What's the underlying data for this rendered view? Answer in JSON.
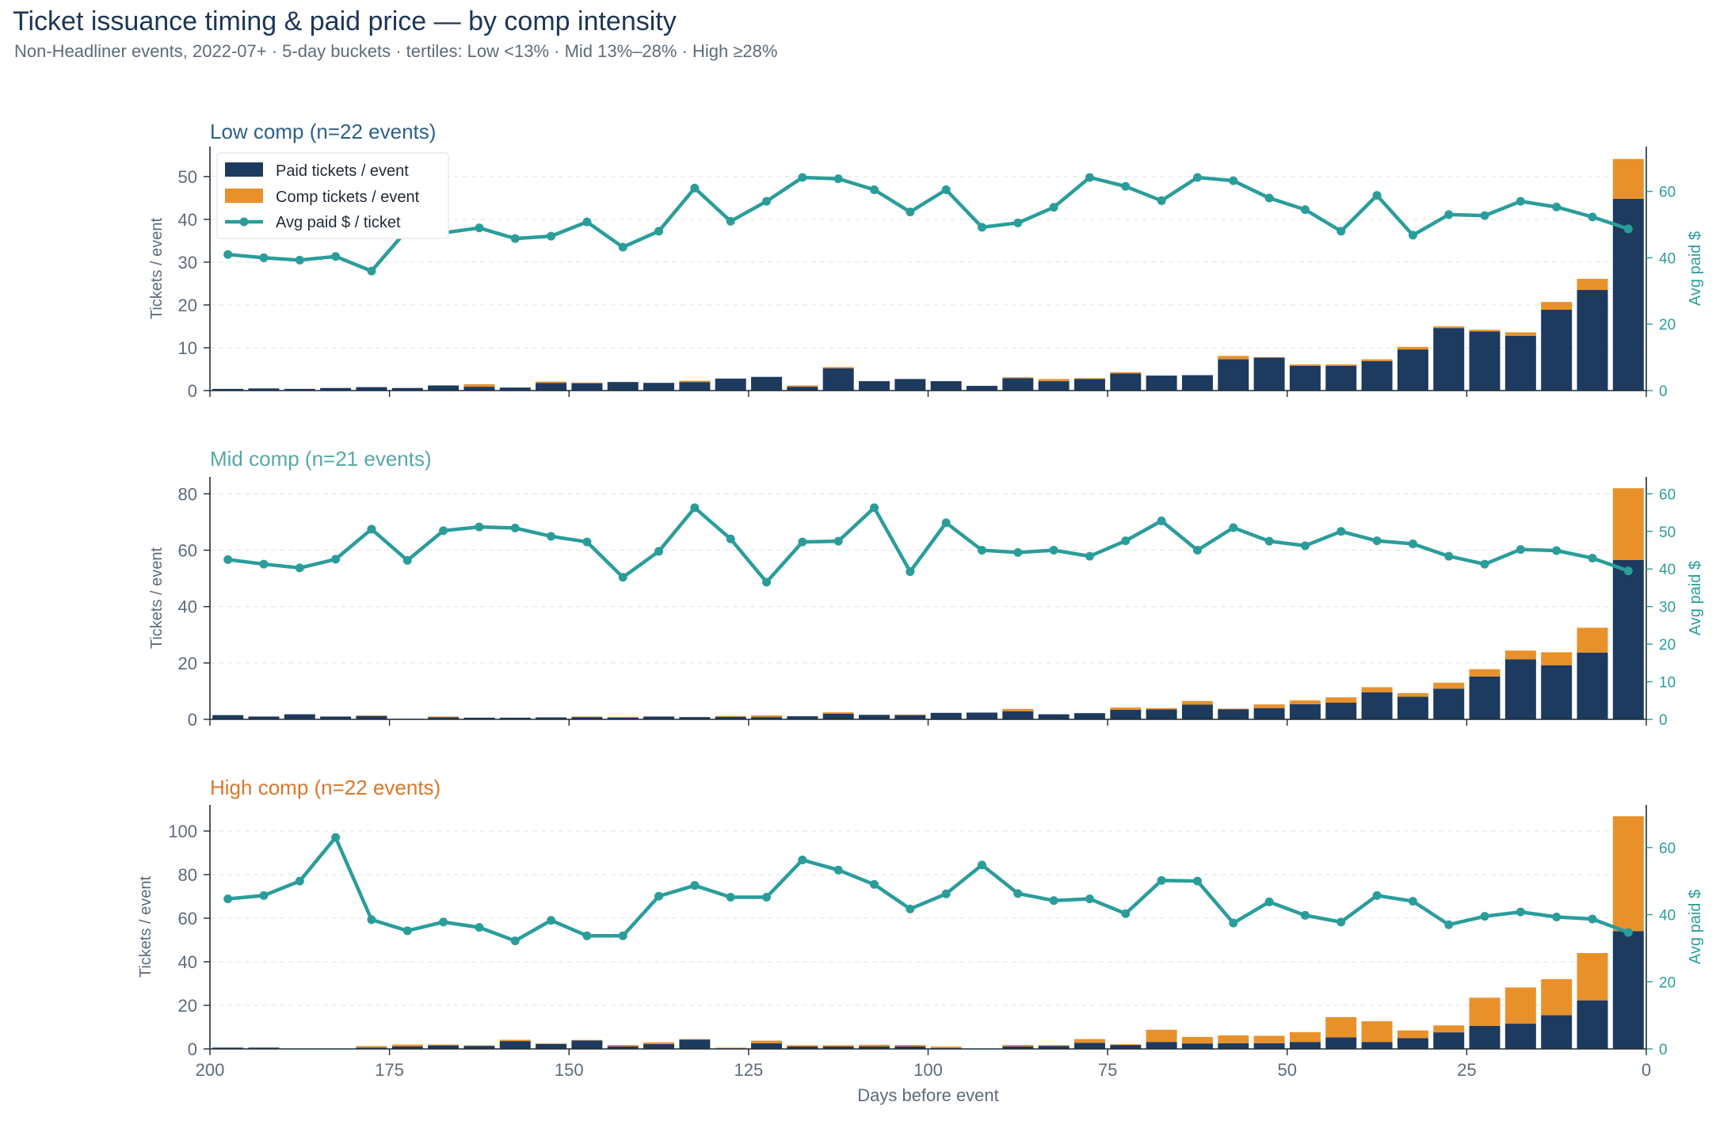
{
  "title": "Ticket issuance timing & paid price — by comp intensity",
  "subtitle": "Non-Headliner events, 2022-07+  ·  5-day buckets  ·  tertiles: Low <13%  ·  Mid 13%–28%  ·  High ≥28%",
  "colors": {
    "paid": "#1d3a5f",
    "comp": "#e8912b",
    "avg_price": "#2a9d9b",
    "title_low": "#2f5f8a",
    "title_mid": "#55a8a8",
    "title_high": "#d9772a",
    "axis_text": "#5d6b7a"
  },
  "legend": {
    "paid": "Paid tickets / event",
    "comp": "Comp tickets / event",
    "avg": "Avg paid $ / ticket"
  },
  "chart_data": [
    {
      "type": "bar",
      "title": "Low comp  (n=22 events)",
      "ylabel": "Tickets / event",
      "y2label": "Avg paid $",
      "xlabel": "",
      "xlim": [
        200,
        0
      ],
      "ylim": [
        0,
        57
      ],
      "yticks": [
        0,
        10,
        20,
        30,
        40,
        50
      ],
      "y2lim": [
        0,
        73.5
      ],
      "y2ticks": [
        0,
        20,
        40,
        60
      ],
      "xticks": [
        200,
        175,
        150,
        125,
        100,
        75,
        50,
        25,
        0
      ],
      "legend_position": "top-left",
      "grid": "y-dashed",
      "x": [
        197.5,
        192.5,
        187.5,
        182.5,
        177.5,
        172.5,
        167.5,
        162.5,
        157.5,
        152.5,
        147.5,
        142.5,
        137.5,
        132.5,
        127.5,
        122.5,
        117.5,
        112.5,
        107.5,
        102.5,
        97.5,
        92.5,
        87.5,
        82.5,
        77.5,
        72.5,
        67.5,
        62.5,
        57.5,
        52.5,
        47.5,
        42.5,
        37.5,
        32.5,
        27.5,
        22.5,
        17.5,
        12.5,
        7.5,
        2.5
      ],
      "series": [
        {
          "name": "Paid tickets / event",
          "kind": "bar",
          "values": [
            0.4,
            0.5,
            0.4,
            0.6,
            0.8,
            0.6,
            1.2,
            0.9,
            0.7,
            1.8,
            1.7,
            2.0,
            1.8,
            2.0,
            2.8,
            3.2,
            0.9,
            5.2,
            2.2,
            2.7,
            2.2,
            1.1,
            2.9,
            2.2,
            2.7,
            4.0,
            3.5,
            3.6,
            7.3,
            7.7,
            5.8,
            5.8,
            6.9,
            9.6,
            14.6,
            13.8,
            12.8,
            18.9,
            23.5,
            44.8
          ]
        },
        {
          "name": "Comp tickets / event",
          "kind": "bar",
          "values": [
            0.0,
            0.0,
            0.0,
            0.0,
            0.0,
            0.0,
            0.0,
            0.6,
            0.0,
            0.3,
            0.2,
            0.0,
            0.0,
            0.3,
            0.0,
            0.0,
            0.3,
            0.3,
            0.0,
            0.0,
            0.0,
            0.0,
            0.2,
            0.5,
            0.2,
            0.3,
            0.0,
            0.0,
            0.8,
            0.1,
            0.3,
            0.3,
            0.4,
            0.6,
            0.4,
            0.4,
            0.8,
            1.8,
            2.6,
            9.3
          ]
        },
        {
          "name": "Avg paid $ / ticket",
          "kind": "line",
          "values": [
            41,
            40,
            39.3,
            40.4,
            36,
            48.5,
            47.5,
            49,
            45.8,
            46.5,
            50.8,
            43.2,
            48,
            61,
            51,
            57,
            64.2,
            63.8,
            60.5,
            53.8,
            60.5,
            49.2,
            50.5,
            55.2,
            64.2,
            61.5,
            57.2,
            64.2,
            63.2,
            58,
            54.5,
            48,
            58.8,
            46.8,
            53,
            52.7,
            57,
            55.3,
            52.3,
            48.7
          ]
        }
      ]
    },
    {
      "type": "bar",
      "title": "Mid comp  (n=21 events)",
      "ylabel": "Tickets / event",
      "y2label": "Avg paid $",
      "xlabel": "",
      "xlim": [
        200,
        0
      ],
      "ylim": [
        0,
        86
      ],
      "yticks": [
        0,
        20,
        40,
        60,
        80
      ],
      "y2lim": [
        0,
        64.5
      ],
      "y2ticks": [
        0,
        10,
        20,
        30,
        40,
        50,
        60
      ],
      "xticks": [
        200,
        175,
        150,
        125,
        100,
        75,
        50,
        25,
        0
      ],
      "grid": "y-dashed",
      "x": [
        197.5,
        192.5,
        187.5,
        182.5,
        177.5,
        172.5,
        167.5,
        162.5,
        157.5,
        152.5,
        147.5,
        142.5,
        137.5,
        132.5,
        127.5,
        122.5,
        117.5,
        112.5,
        107.5,
        102.5,
        97.5,
        92.5,
        87.5,
        82.5,
        77.5,
        72.5,
        67.5,
        62.5,
        57.5,
        52.5,
        47.5,
        42.5,
        37.5,
        32.5,
        27.5,
        22.5,
        17.5,
        12.5,
        7.5,
        2.5
      ],
      "series": [
        {
          "name": "Paid tickets / event",
          "kind": "bar",
          "values": [
            1.5,
            1.0,
            1.8,
            1.0,
            1.2,
            0.2,
            0.7,
            0.6,
            0.6,
            0.7,
            0.8,
            0.6,
            1.0,
            0.8,
            0.9,
            0.8,
            1.1,
            2.0,
            1.6,
            1.5,
            2.3,
            2.4,
            2.9,
            1.8,
            2.2,
            3.4,
            3.5,
            5.2,
            3.6,
            4.0,
            5.4,
            5.9,
            9.6,
            8.0,
            10.9,
            15.2,
            21.3,
            19.2,
            23.7,
            56.5
          ]
        },
        {
          "name": "Comp tickets / event",
          "kind": "bar",
          "values": [
            0.0,
            0.0,
            0.0,
            0.0,
            0.2,
            0.0,
            0.3,
            0.0,
            0.0,
            0.0,
            0.2,
            0.3,
            0.0,
            0.0,
            0.3,
            0.6,
            0.0,
            0.5,
            0.0,
            0.2,
            0.0,
            0.0,
            0.8,
            0.0,
            0.0,
            0.8,
            0.5,
            1.3,
            0.2,
            1.3,
            1.3,
            1.9,
            1.8,
            1.3,
            2.1,
            2.6,
            3.1,
            4.6,
            8.8,
            25.5
          ]
        },
        {
          "name": "Avg paid $ / ticket",
          "kind": "line",
          "values": [
            42.5,
            41.3,
            40.3,
            42.6,
            50.6,
            42.3,
            50.2,
            51.2,
            50.9,
            48.7,
            47.2,
            37.8,
            44.7,
            56.3,
            48,
            36.5,
            47.2,
            47.4,
            56.3,
            39.3,
            52.3,
            45,
            44.4,
            45,
            43.4,
            47.5,
            52.8,
            45,
            51,
            47.4,
            46.2,
            50,
            47.5,
            46.7,
            43.4,
            41.3,
            45.2,
            44.9,
            42.9,
            39.5
          ]
        }
      ]
    },
    {
      "type": "bar",
      "title": "High comp  (n=22 events)",
      "ylabel": "Tickets / event",
      "y2label": "Avg paid $",
      "xlabel": "Days before event",
      "xlim": [
        200,
        0
      ],
      "ylim": [
        0,
        112
      ],
      "yticks": [
        0,
        20,
        40,
        60,
        80,
        100
      ],
      "y2lim": [
        0,
        72.7
      ],
      "y2ticks": [
        0,
        20,
        40,
        60
      ],
      "xticks": [
        200,
        175,
        150,
        125,
        100,
        75,
        50,
        25,
        0
      ],
      "grid": "y-dashed",
      "x": [
        197.5,
        192.5,
        187.5,
        182.5,
        177.5,
        172.5,
        167.5,
        162.5,
        157.5,
        152.5,
        147.5,
        142.5,
        137.5,
        132.5,
        127.5,
        122.5,
        117.5,
        112.5,
        107.5,
        102.5,
        97.5,
        92.5,
        87.5,
        82.5,
        77.5,
        72.5,
        67.5,
        62.5,
        57.5,
        52.5,
        47.5,
        42.5,
        37.5,
        32.5,
        27.5,
        22.5,
        17.5,
        12.5,
        7.5,
        2.5
      ],
      "series": [
        {
          "name": "Paid tickets / event",
          "kind": "bar",
          "values": [
            0.6,
            0.6,
            0.1,
            0.1,
            0.6,
            1.2,
            1.6,
            1.4,
            3.6,
            2.3,
            3.9,
            1.2,
            2.2,
            4.3,
            0.3,
            2.6,
            1.1,
            1.1,
            1.2,
            1.2,
            0.4,
            0.1,
            1.2,
            1.4,
            2.8,
            1.8,
            3.2,
            2.5,
            2.6,
            2.6,
            3.2,
            5.3,
            3.2,
            5.0,
            7.6,
            10.6,
            11.6,
            15.5,
            22.3,
            54.0
          ]
        },
        {
          "name": "Comp tickets / event",
          "kind": "bar",
          "values": [
            0.0,
            0.0,
            0.0,
            0.0,
            0.7,
            0.8,
            0.4,
            0.2,
            0.6,
            0.2,
            0.2,
            0.6,
            0.8,
            0.2,
            0.3,
            1.2,
            0.6,
            0.6,
            0.7,
            0.6,
            0.7,
            0.0,
            0.6,
            0.3,
            1.7,
            0.3,
            5.6,
            3.0,
            3.6,
            3.4,
            4.5,
            9.3,
            9.5,
            3.5,
            3.2,
            12.9,
            16.6,
            16.5,
            21.7,
            52.8
          ]
        },
        {
          "name": "Avg paid $ / ticket",
          "kind": "line",
          "values": [
            44.7,
            45.7,
            50,
            63,
            38.5,
            35.2,
            37.8,
            36.2,
            32.2,
            38.3,
            33.7,
            33.7,
            45.5,
            48.7,
            45.2,
            45.2,
            56.3,
            53.3,
            49,
            41.7,
            46.2,
            54.8,
            46.3,
            44.2,
            44.7,
            40.3,
            50.2,
            50,
            37.5,
            43.8,
            39.8,
            37.8,
            45.7,
            44,
            37,
            39.5,
            40.8,
            39.3,
            38.7,
            34.7
          ]
        }
      ]
    }
  ]
}
